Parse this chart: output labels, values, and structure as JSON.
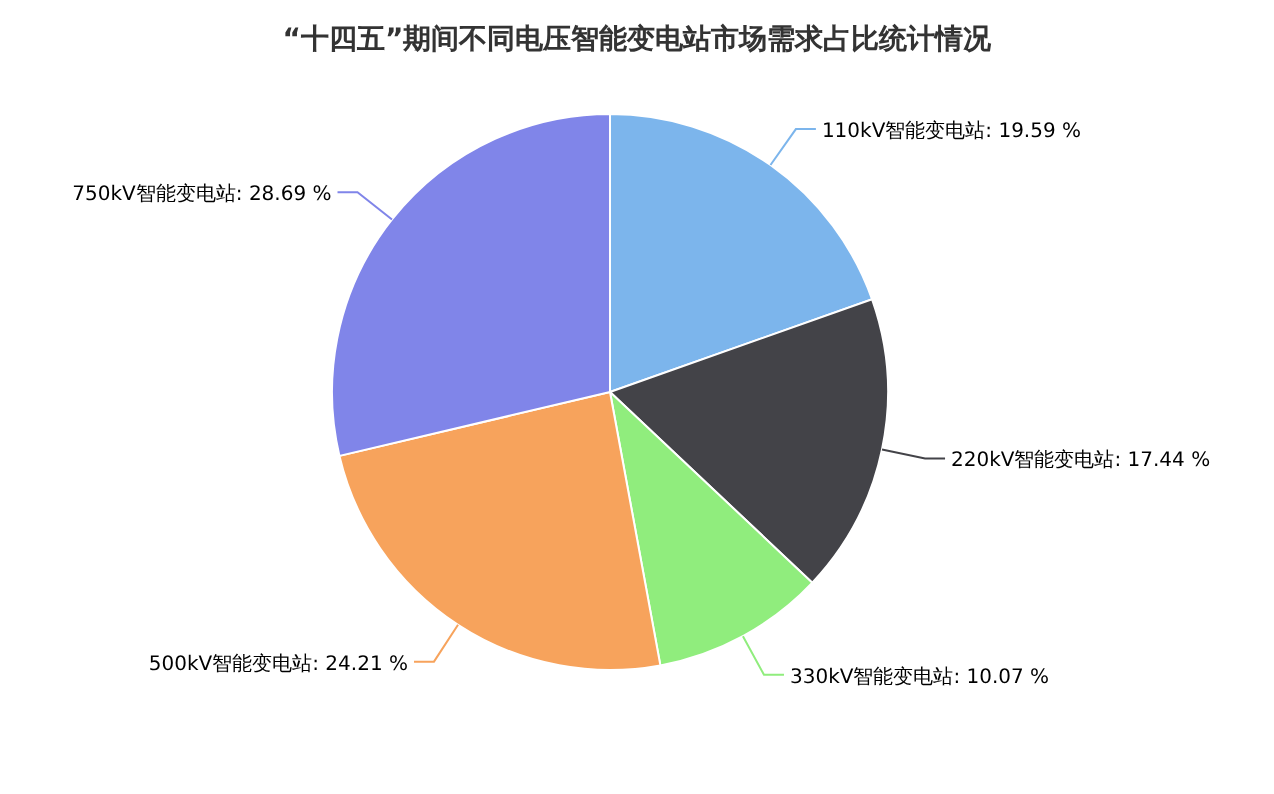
{
  "chart_data": {
    "type": "pie",
    "title": "“十四五”期间不同电压智能变电站市场需求占比统计情况",
    "categories": [
      "110kV智能变电站",
      "220kV智能变电站",
      "330kV智能变电站",
      "500kV智能变电站",
      "750kV智能变电站"
    ],
    "values": [
      19.59,
      17.44,
      10.07,
      24.21,
      28.69
    ],
    "value_labels": [
      "19.59 %",
      "17.44 %",
      "10.07 %",
      "24.21 %",
      "28.69 %"
    ],
    "colors": [
      "#7cb5ec",
      "#434348",
      "#90ed7d",
      "#f7a35c",
      "#8085e9"
    ],
    "legend": false
  }
}
